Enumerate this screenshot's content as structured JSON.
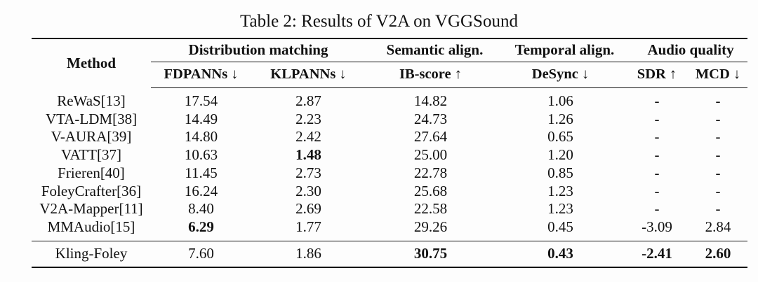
{
  "caption": "Table 2: Results of V2A on VGGSound",
  "header": {
    "method": "Method",
    "groups": [
      "Distribution matching",
      "Semantic align.",
      "Temporal align.",
      "Audio quality"
    ],
    "metrics": [
      "FDPANNs ↓",
      "KLPANNs ↓",
      "IB-score ↑",
      "DeSync ↓",
      "SDR ↑",
      "MCD ↓"
    ]
  },
  "rows": [
    {
      "method": "ReWaS[13]",
      "values": [
        "17.54",
        "2.87",
        "14.82",
        "1.06",
        "-",
        "-"
      ]
    },
    {
      "method": "VTA-LDM[38]",
      "values": [
        "14.49",
        "2.23",
        "24.73",
        "1.26",
        "-",
        "-"
      ]
    },
    {
      "method": "V-AURA[39]",
      "values": [
        "14.80",
        "2.42",
        "27.64",
        "0.65",
        "-",
        "-"
      ]
    },
    {
      "method": "VATT[37]",
      "values": [
        "10.63",
        "1.48",
        "25.00",
        "1.20",
        "-",
        "-"
      ]
    },
    {
      "method": "Frieren[40]",
      "values": [
        "11.45",
        "2.73",
        "22.78",
        "0.85",
        "-",
        "-"
      ]
    },
    {
      "method": "FoleyCrafter[36]",
      "values": [
        "16.24",
        "2.30",
        "25.68",
        "1.23",
        "-",
        "-"
      ]
    },
    {
      "method": "V2A-Mapper[11]",
      "values": [
        "8.40",
        "2.69",
        "22.58",
        "1.23",
        "-",
        "-"
      ]
    },
    {
      "method": "MMAudio[15]",
      "values": [
        "6.29",
        "1.77",
        "29.26",
        "0.45",
        "-3.09",
        "2.84"
      ]
    }
  ],
  "final_row": {
    "method": "Kling-Foley",
    "values": [
      "7.60",
      "1.86",
      "30.75",
      "0.43",
      "-2.41",
      "2.60"
    ]
  }
}
